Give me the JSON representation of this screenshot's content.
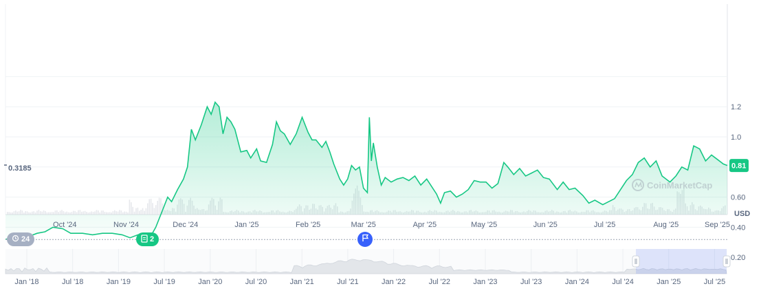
{
  "chart_data": {
    "type": "area",
    "currency_label": "USD",
    "watermark": "CoinMarketCap",
    "y_ticks": [
      "0.40",
      "0.60",
      "0.80",
      "1.0",
      "1.2"
    ],
    "y_tick_values": [
      0.4,
      0.6,
      0.8,
      1.0,
      1.2
    ],
    "ylim": [
      0.2,
      1.4
    ],
    "baseline_value": 0.3185,
    "baseline_label": "0.3185",
    "current_value": 0.81,
    "current_label": "0.81",
    "x_ticks": [
      "Oct '24",
      "Nov '24",
      "Dec '24",
      "Jan '25",
      "Feb '25",
      "Mar '25",
      "Apr '25",
      "May '25",
      "Jun '25",
      "Jul '25",
      "Aug '25",
      "Sep '25"
    ],
    "x_tick_dates": [
      "2024-10-01",
      "2024-11-01",
      "2024-12-01",
      "2025-01-01",
      "2025-02-01",
      "2025-03-01",
      "2025-04-01",
      "2025-05-01",
      "2025-06-01",
      "2025-07-01",
      "2025-08-01",
      "2025-09-01"
    ],
    "xlim": [
      "2024-09-01",
      "2025-09-01"
    ],
    "series": [
      {
        "color": "#16c784",
        "points": [
          [
            "2024-09-01",
            0.32
          ],
          [
            "2024-09-06",
            0.33
          ],
          [
            "2024-09-10",
            0.35
          ],
          [
            "2024-09-13",
            0.34
          ],
          [
            "2024-09-17",
            0.36
          ],
          [
            "2024-09-21",
            0.37
          ],
          [
            "2024-09-25",
            0.4
          ],
          [
            "2024-09-30",
            0.39
          ],
          [
            "2024-10-04",
            0.36
          ],
          [
            "2024-10-10",
            0.36
          ],
          [
            "2024-10-15",
            0.35
          ],
          [
            "2024-10-20",
            0.36
          ],
          [
            "2024-10-25",
            0.36
          ],
          [
            "2024-10-30",
            0.35
          ],
          [
            "2024-11-03",
            0.33
          ],
          [
            "2024-11-07",
            0.35
          ],
          [
            "2024-11-10",
            0.36
          ],
          [
            "2024-11-13",
            0.33
          ],
          [
            "2024-11-16",
            0.4
          ],
          [
            "2024-11-19",
            0.5
          ],
          [
            "2024-11-22",
            0.6
          ],
          [
            "2024-11-24",
            0.57
          ],
          [
            "2024-11-27",
            0.65
          ],
          [
            "2024-11-30",
            0.72
          ],
          [
            "2024-12-02",
            0.8
          ],
          [
            "2024-12-04",
            1.05
          ],
          [
            "2024-12-06",
            0.98
          ],
          [
            "2024-12-09",
            1.08
          ],
          [
            "2024-12-12",
            1.2
          ],
          [
            "2024-12-14",
            1.15
          ],
          [
            "2024-12-16",
            1.23
          ],
          [
            "2024-12-18",
            1.2
          ],
          [
            "2024-12-20",
            1.02
          ],
          [
            "2024-12-22",
            1.13
          ],
          [
            "2024-12-24",
            1.1
          ],
          [
            "2024-12-26",
            1.05
          ],
          [
            "2024-12-29",
            0.9
          ],
          [
            "2025-01-01",
            0.91
          ],
          [
            "2025-01-03",
            0.86
          ],
          [
            "2025-01-06",
            0.92
          ],
          [
            "2025-01-08",
            0.84
          ],
          [
            "2025-01-11",
            0.83
          ],
          [
            "2025-01-14",
            0.95
          ],
          [
            "2025-01-16",
            1.1
          ],
          [
            "2025-01-18",
            1.04
          ],
          [
            "2025-01-20",
            1.02
          ],
          [
            "2025-01-23",
            0.95
          ],
          [
            "2025-01-26",
            1.02
          ],
          [
            "2025-01-29",
            1.13
          ],
          [
            "2025-02-01",
            1.03
          ],
          [
            "2025-02-03",
            0.98
          ],
          [
            "2025-02-05",
            0.98
          ],
          [
            "2025-02-08",
            0.93
          ],
          [
            "2025-02-10",
            0.97
          ],
          [
            "2025-02-12",
            0.9
          ],
          [
            "2025-02-14",
            0.82
          ],
          [
            "2025-02-17",
            0.72
          ],
          [
            "2025-02-19",
            0.68
          ],
          [
            "2025-02-21",
            0.72
          ],
          [
            "2025-02-23",
            0.81
          ],
          [
            "2025-02-25",
            0.78
          ],
          [
            "2025-02-27",
            0.8
          ],
          [
            "2025-03-01",
            0.66
          ],
          [
            "2025-03-03",
            0.63
          ],
          [
            "2025-03-04",
            1.13
          ],
          [
            "2025-03-05",
            0.84
          ],
          [
            "2025-03-06",
            0.96
          ],
          [
            "2025-03-08",
            0.8
          ],
          [
            "2025-03-10",
            0.68
          ],
          [
            "2025-03-12",
            0.73
          ],
          [
            "2025-03-15",
            0.7
          ],
          [
            "2025-03-18",
            0.72
          ],
          [
            "2025-03-21",
            0.73
          ],
          [
            "2025-03-24",
            0.71
          ],
          [
            "2025-03-27",
            0.74
          ],
          [
            "2025-03-30",
            0.68
          ],
          [
            "2025-04-02",
            0.72
          ],
          [
            "2025-04-04",
            0.68
          ],
          [
            "2025-04-07",
            0.62
          ],
          [
            "2025-04-09",
            0.56
          ],
          [
            "2025-04-11",
            0.63
          ],
          [
            "2025-04-14",
            0.64
          ],
          [
            "2025-04-17",
            0.6
          ],
          [
            "2025-04-20",
            0.62
          ],
          [
            "2025-04-23",
            0.65
          ],
          [
            "2025-04-26",
            0.71
          ],
          [
            "2025-04-29",
            0.7
          ],
          [
            "2025-05-02",
            0.7
          ],
          [
            "2025-05-05",
            0.66
          ],
          [
            "2025-05-08",
            0.69
          ],
          [
            "2025-05-11",
            0.83
          ],
          [
            "2025-05-13",
            0.8
          ],
          [
            "2025-05-16",
            0.75
          ],
          [
            "2025-05-19",
            0.79
          ],
          [
            "2025-05-22",
            0.74
          ],
          [
            "2025-05-25",
            0.76
          ],
          [
            "2025-05-28",
            0.78
          ],
          [
            "2025-05-31",
            0.73
          ],
          [
            "2025-06-03",
            0.72
          ],
          [
            "2025-06-07",
            0.65
          ],
          [
            "2025-06-10",
            0.7
          ],
          [
            "2025-06-13",
            0.65
          ],
          [
            "2025-06-16",
            0.66
          ],
          [
            "2025-06-20",
            0.61
          ],
          [
            "2025-06-23",
            0.56
          ],
          [
            "2025-06-26",
            0.58
          ],
          [
            "2025-06-30",
            0.55
          ],
          [
            "2025-07-03",
            0.57
          ],
          [
            "2025-07-06",
            0.59
          ],
          [
            "2025-07-09",
            0.65
          ],
          [
            "2025-07-12",
            0.71
          ],
          [
            "2025-07-15",
            0.75
          ],
          [
            "2025-07-18",
            0.83
          ],
          [
            "2025-07-21",
            0.86
          ],
          [
            "2025-07-24",
            0.8
          ],
          [
            "2025-07-27",
            0.84
          ],
          [
            "2025-07-30",
            0.74
          ],
          [
            "2025-08-03",
            0.7
          ],
          [
            "2025-08-06",
            0.74
          ],
          [
            "2025-08-09",
            0.8
          ],
          [
            "2025-08-12",
            0.78
          ],
          [
            "2025-08-15",
            0.94
          ],
          [
            "2025-08-18",
            0.92
          ],
          [
            "2025-08-21",
            0.84
          ],
          [
            "2025-08-24",
            0.88
          ],
          [
            "2025-08-27",
            0.85
          ],
          [
            "2025-08-30",
            0.82
          ],
          [
            "2025-09-01",
            0.81
          ]
        ]
      }
    ]
  },
  "navigator": {
    "labels": [
      "Jan '18",
      "Jul '18",
      "Jan '19",
      "Jul '19",
      "Jan '20",
      "Jul '20",
      "Jan '21",
      "Jul '21",
      "Jan '22",
      "Jul '22",
      "Jan '23",
      "Jul '23",
      "Jan '24",
      "Jul '24",
      "Jan '25",
      "Jul '25"
    ]
  },
  "events": {
    "history_count": "24",
    "news_count": "2"
  }
}
